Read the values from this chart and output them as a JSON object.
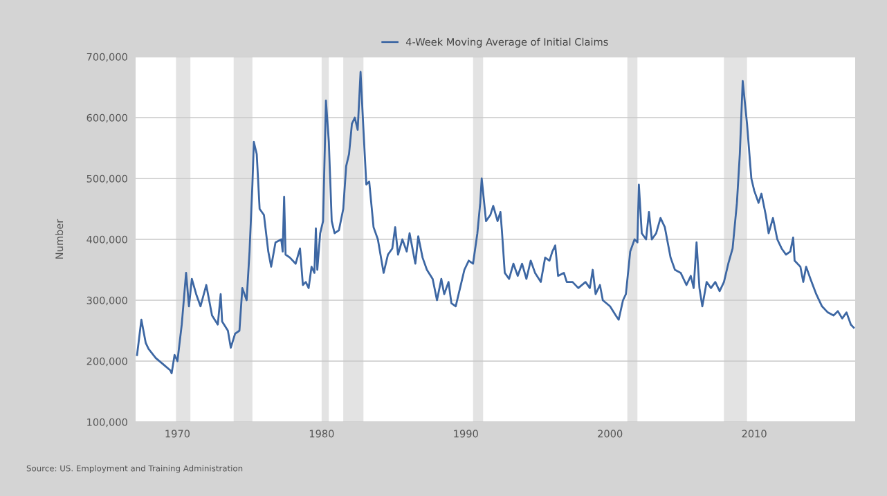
{
  "chart_data": {
    "type": "line",
    "ylabel": "Number",
    "x": [
      1967.2,
      1967.5,
      1967.8,
      1968.0,
      1968.5,
      1969.0,
      1969.5,
      1969.6,
      1969.8,
      1970.0,
      1970.3,
      1970.6,
      1970.8,
      1971.0,
      1971.3,
      1971.6,
      1972.0,
      1972.4,
      1972.8,
      1973.0,
      1973.1,
      1973.5,
      1973.7,
      1974.0,
      1974.3,
      1974.5,
      1974.8,
      1975.0,
      1975.2,
      1975.3,
      1975.5,
      1975.7,
      1976.0,
      1976.3,
      1976.5,
      1976.8,
      1977.2,
      1977.3,
      1977.4,
      1977.5,
      1977.8,
      1978.2,
      1978.5,
      1978.7,
      1978.9,
      1979.1,
      1979.3,
      1979.5,
      1979.6,
      1979.7,
      1979.9,
      1980.1,
      1980.3,
      1980.5,
      1980.7,
      1980.9,
      1981.2,
      1981.5,
      1981.7,
      1981.9,
      1982.1,
      1982.3,
      1982.5,
      1982.7,
      1982.9,
      1983.1,
      1983.3,
      1983.6,
      1983.9,
      1984.3,
      1984.6,
      1984.9,
      1985.1,
      1985.3,
      1985.6,
      1985.9,
      1986.1,
      1986.5,
      1986.7,
      1987.0,
      1987.3,
      1987.7,
      1988.0,
      1988.3,
      1988.5,
      1988.8,
      1989.0,
      1989.3,
      1989.6,
      1989.9,
      1990.2,
      1990.5,
      1990.8,
      1991.0,
      1991.1,
      1991.4,
      1991.7,
      1991.9,
      1992.2,
      1992.4,
      1992.5,
      1992.7,
      1993.0,
      1993.3,
      1993.6,
      1993.9,
      1994.2,
      1994.5,
      1994.8,
      1995.2,
      1995.5,
      1995.8,
      1996.0,
      1996.2,
      1996.4,
      1996.8,
      1997.0,
      1997.4,
      1997.8,
      1998.3,
      1998.6,
      1998.8,
      1999.0,
      1999.3,
      1999.5,
      2000.0,
      2000.4,
      2000.6,
      2000.9,
      2001.1,
      2001.4,
      2001.7,
      2001.9,
      2002.0,
      2002.2,
      2002.5,
      2002.7,
      2002.9,
      2003.2,
      2003.5,
      2003.8,
      2004.2,
      2004.5,
      2004.9,
      2005.3,
      2005.6,
      2005.8,
      2006.0,
      2006.2,
      2006.4,
      2006.7,
      2007.0,
      2007.3,
      2007.6,
      2007.9,
      2008.2,
      2008.5,
      2008.8,
      2009.0,
      2009.2,
      2009.5,
      2009.8,
      2010.0,
      2010.3,
      2010.5,
      2010.8,
      2011.0,
      2011.3,
      2011.6,
      2011.9,
      2012.2,
      2012.5,
      2012.7,
      2012.8,
      2013.2,
      2013.4,
      2013.6,
      2013.9,
      2014.3,
      2014.7,
      2015.1,
      2015.5,
      2015.8,
      2016.1,
      2016.4,
      2016.7,
      2016.9
    ],
    "series": [
      {
        "name": "4-Week Moving Average of Initial Claims",
        "color": "#3d67a3",
        "values": [
          210000,
          268000,
          230000,
          220000,
          205000,
          195000,
          185000,
          180000,
          210000,
          200000,
          260000,
          345000,
          290000,
          335000,
          310000,
          290000,
          325000,
          275000,
          260000,
          310000,
          265000,
          250000,
          222000,
          245000,
          250000,
          320000,
          300000,
          380000,
          490000,
          560000,
          540000,
          450000,
          440000,
          380000,
          355000,
          395000,
          400000,
          380000,
          470000,
          375000,
          370000,
          360000,
          385000,
          325000,
          330000,
          320000,
          355000,
          345000,
          418000,
          350000,
          410000,
          430000,
          628000,
          560000,
          430000,
          410000,
          415000,
          450000,
          520000,
          540000,
          590000,
          600000,
          580000,
          675000,
          580000,
          490000,
          495000,
          420000,
          400000,
          345000,
          375000,
          385000,
          420000,
          375000,
          400000,
          380000,
          410000,
          360000,
          405000,
          370000,
          350000,
          335000,
          300000,
          335000,
          310000,
          330000,
          295000,
          290000,
          320000,
          350000,
          365000,
          360000,
          410000,
          460000,
          500000,
          430000,
          440000,
          455000,
          430000,
          445000,
          415000,
          345000,
          335000,
          360000,
          340000,
          360000,
          335000,
          365000,
          345000,
          330000,
          370000,
          365000,
          380000,
          390000,
          340000,
          345000,
          330000,
          330000,
          320000,
          330000,
          320000,
          350000,
          310000,
          325000,
          300000,
          290000,
          275000,
          268000,
          300000,
          310000,
          380000,
          400000,
          395000,
          490000,
          410000,
          400000,
          445000,
          400000,
          410000,
          435000,
          420000,
          370000,
          350000,
          345000,
          325000,
          340000,
          320000,
          395000,
          320000,
          290000,
          330000,
          320000,
          330000,
          315000,
          330000,
          360000,
          385000,
          460000,
          540000,
          660000,
          590000,
          500000,
          480000,
          460000,
          475000,
          440000,
          410000,
          435000,
          400000,
          385000,
          375000,
          380000,
          403000,
          365000,
          355000,
          330000,
          355000,
          335000,
          310000,
          290000,
          280000,
          275000,
          282000,
          270000,
          280000,
          260000,
          255000
        ]
      }
    ],
    "xlim": [
      1967.1,
      2017.0
    ],
    "xticks": [
      1970,
      1980,
      1990,
      2000,
      2010
    ],
    "ylim": [
      100000,
      700000
    ],
    "yticks": [
      {
        "value": 100000,
        "label": "100,000"
      },
      {
        "value": 200000,
        "label": "200,000"
      },
      {
        "value": 300000,
        "label": "300,000"
      },
      {
        "value": 400000,
        "label": "400,000"
      },
      {
        "value": 500000,
        "label": "500,000"
      },
      {
        "value": 600000,
        "label": "600,000"
      },
      {
        "value": 700000,
        "label": "700,000"
      }
    ],
    "bands": [
      {
        "axis": "x",
        "from": 1969.9,
        "to": 1970.9,
        "color": "#e3e3e3"
      },
      {
        "axis": "x",
        "from": 1973.9,
        "to": 1975.2,
        "color": "#e3e3e3"
      },
      {
        "axis": "x",
        "from": 1980.0,
        "to": 1980.5,
        "color": "#e3e3e3"
      },
      {
        "axis": "x",
        "from": 1981.5,
        "to": 1982.9,
        "color": "#e3e3e3"
      },
      {
        "axis": "x",
        "from": 1990.5,
        "to": 1991.2,
        "color": "#e3e3e3"
      },
      {
        "axis": "x",
        "from": 2001.2,
        "to": 2001.9,
        "color": "#e3e3e3"
      },
      {
        "axis": "x",
        "from": 2007.9,
        "to": 2009.5,
        "color": "#e3e3e3"
      }
    ],
    "annotations": [
      "Source: US. Employment and Training Administration"
    ],
    "grid": "y",
    "legend": "top"
  }
}
